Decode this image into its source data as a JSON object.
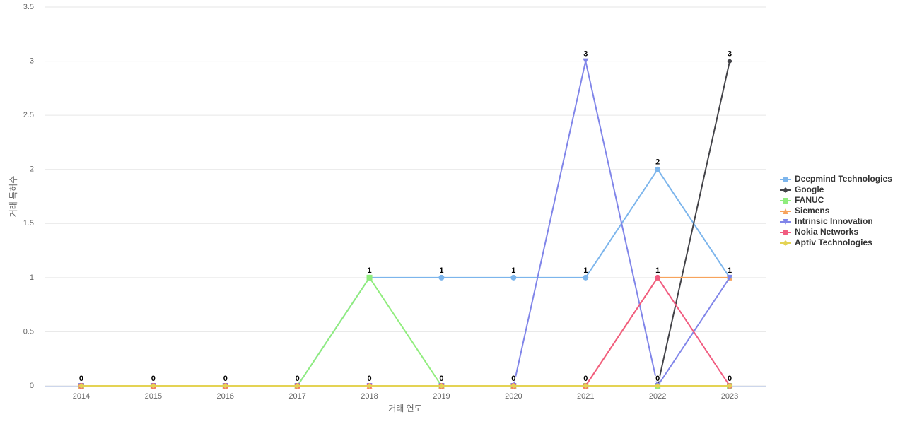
{
  "chart_data": {
    "type": "line",
    "x_label": "거래 연도",
    "y_label": "거래 특허수",
    "categories": [
      "2014",
      "2015",
      "2016",
      "2017",
      "2018",
      "2019",
      "2020",
      "2021",
      "2022",
      "2023"
    ],
    "ylim": [
      0,
      3.5
    ],
    "yticks": [
      0,
      0.5,
      1,
      1.5,
      2,
      2.5,
      3,
      3.5
    ],
    "grid": true,
    "legend": "right",
    "series": [
      {
        "name": "Deepmind Technologies",
        "color": "#7cb5ec",
        "marker": "circle",
        "values": [
          0,
          0,
          0,
          0,
          1,
          1,
          1,
          1,
          2,
          1
        ]
      },
      {
        "name": "Google",
        "color": "#434348",
        "marker": "diamond",
        "values": [
          0,
          0,
          0,
          0,
          0,
          0,
          0,
          0,
          0,
          3
        ]
      },
      {
        "name": "FANUC",
        "color": "#90ed7d",
        "marker": "square",
        "values": [
          0,
          0,
          0,
          0,
          1,
          0,
          0,
          0,
          0,
          0
        ]
      },
      {
        "name": "Siemens",
        "color": "#f7a35c",
        "marker": "triangle",
        "values": [
          0,
          0,
          0,
          0,
          0,
          0,
          0,
          0,
          1,
          1
        ]
      },
      {
        "name": "Intrinsic Innovation",
        "color": "#8085e9",
        "marker": "triangle-down",
        "values": [
          0,
          0,
          0,
          0,
          0,
          0,
          0,
          3,
          0,
          1
        ]
      },
      {
        "name": "Nokia Networks",
        "color": "#f15c80",
        "marker": "circle",
        "values": [
          0,
          0,
          0,
          0,
          0,
          0,
          0,
          0,
          1,
          0
        ]
      },
      {
        "name": "Aptiv Technologies",
        "color": "#e4d354",
        "marker": "diamond",
        "values": [
          0,
          0,
          0,
          0,
          0,
          0,
          0,
          0,
          0,
          0
        ]
      }
    ]
  }
}
